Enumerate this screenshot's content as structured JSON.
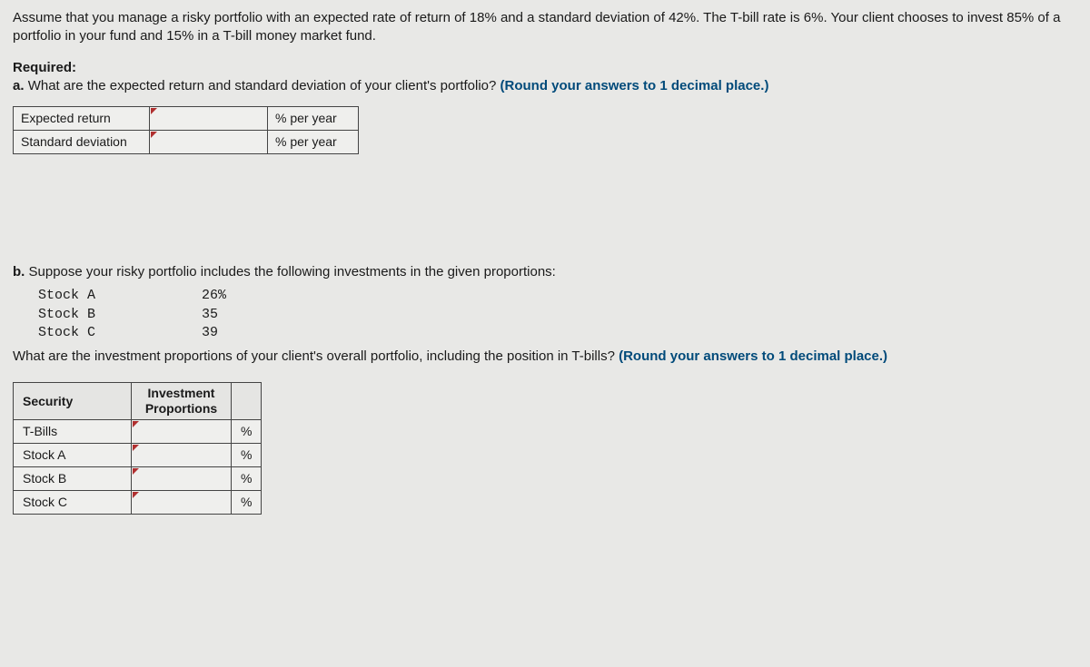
{
  "intro": "Assume that you manage a risky portfolio with an expected rate of return of 18% and a standard deviation of 42%. The T-bill rate is 6%. Your client chooses to invest 85% of a portfolio in your fund and 15% in a T-bill money market fund.",
  "required_label": "Required:",
  "part_a": {
    "marker": "a.",
    "text": "What are the expected return and standard deviation of your client's portfolio? ",
    "hint": "(Round your answers to 1 decimal place.)",
    "rows": [
      {
        "label": "Expected return",
        "unit": "% per year"
      },
      {
        "label": "Standard deviation",
        "unit": "% per year"
      }
    ]
  },
  "part_b": {
    "marker": "b.",
    "intro": "Suppose your risky portfolio includes the following investments in the given proportions:",
    "stocks": [
      {
        "name": "Stock A",
        "pct": "26%"
      },
      {
        "name": "Stock B",
        "pct": "35"
      },
      {
        "name": "Stock C",
        "pct": "39"
      }
    ],
    "question": "What are the investment proportions of your client's overall portfolio, including the position in T-bills? ",
    "hint": "(Round your answers to 1 decimal place.)",
    "headers": {
      "security": "Security",
      "proportions_l1": "Investment",
      "proportions_l2": "Proportions"
    },
    "rows": [
      {
        "label": "T-Bills",
        "unit": "%"
      },
      {
        "label": "Stock A",
        "unit": "%"
      },
      {
        "label": "Stock B",
        "unit": "%"
      },
      {
        "label": "Stock C",
        "unit": "%"
      }
    ]
  },
  "colors": {
    "background": "#e8e8e6",
    "text": "#1a1a1a",
    "bold_hint": "#004a7a",
    "border": "#444444",
    "triangle": "#b03030"
  }
}
